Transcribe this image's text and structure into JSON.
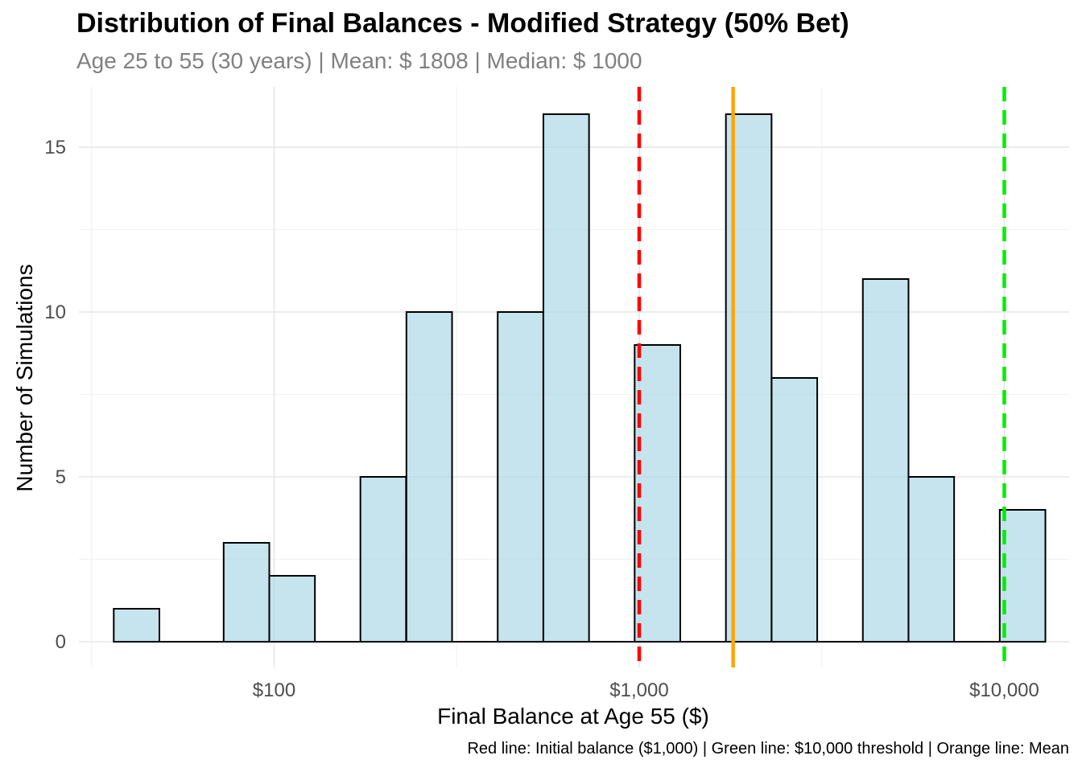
{
  "chart_data": {
    "type": "bar",
    "title": "Distribution of Final Balances - Modified Strategy (50% Bet)",
    "subtitle": "Age 25 to 55 (30 years) | Mean: $ 1808 | Median: $ 1000",
    "xlabel": "Final Balance at Age 55 ($)",
    "ylabel": "Number of Simulations",
    "caption": "Red line: Initial balance ($1,000) | Green line: $10,000 threshold | Orange line: Mean",
    "x_scale": "log10",
    "x_ticks": [
      {
        "value": 100,
        "label": "$100"
      },
      {
        "value": 1000,
        "label": "$1,000"
      },
      {
        "value": 10000,
        "label": "$10,000"
      }
    ],
    "y_ticks": [
      0,
      5,
      10,
      15
    ],
    "ylim": [
      0,
      16.8
    ],
    "bin_width_log10": 0.125,
    "bins": [
      {
        "center": 42,
        "count": 1
      },
      {
        "center": 75,
        "count": 0
      },
      {
        "center": 84,
        "count": 3
      },
      {
        "center": 112,
        "count": 2
      },
      {
        "center": 150,
        "count": 0
      },
      {
        "center": 199,
        "count": 5
      },
      {
        "center": 266,
        "count": 10
      },
      {
        "center": 354,
        "count": 0
      },
      {
        "center": 473,
        "count": 10
      },
      {
        "center": 631,
        "count": 16
      },
      {
        "center": 841,
        "count": 0
      },
      {
        "center": 1122,
        "count": 9
      },
      {
        "center": 1496,
        "count": 0
      },
      {
        "center": 1995,
        "count": 16
      },
      {
        "center": 2661,
        "count": 8
      },
      {
        "center": 3548,
        "count": 0
      },
      {
        "center": 4732,
        "count": 11
      },
      {
        "center": 6310,
        "count": 5
      },
      {
        "center": 8414,
        "count": 0
      },
      {
        "center": 11220,
        "count": 4
      }
    ],
    "reference_lines": [
      {
        "name": "Initial balance",
        "value": 1000,
        "color": "#ff0000",
        "style": "dashed"
      },
      {
        "name": "Mean",
        "value": 1808,
        "color": "#ffa500",
        "style": "solid"
      },
      {
        "name": "$10,000 threshold",
        "value": 10000,
        "color": "#00ee00",
        "style": "dashed"
      }
    ],
    "bar_fill": "#add8e6",
    "grid": true
  }
}
